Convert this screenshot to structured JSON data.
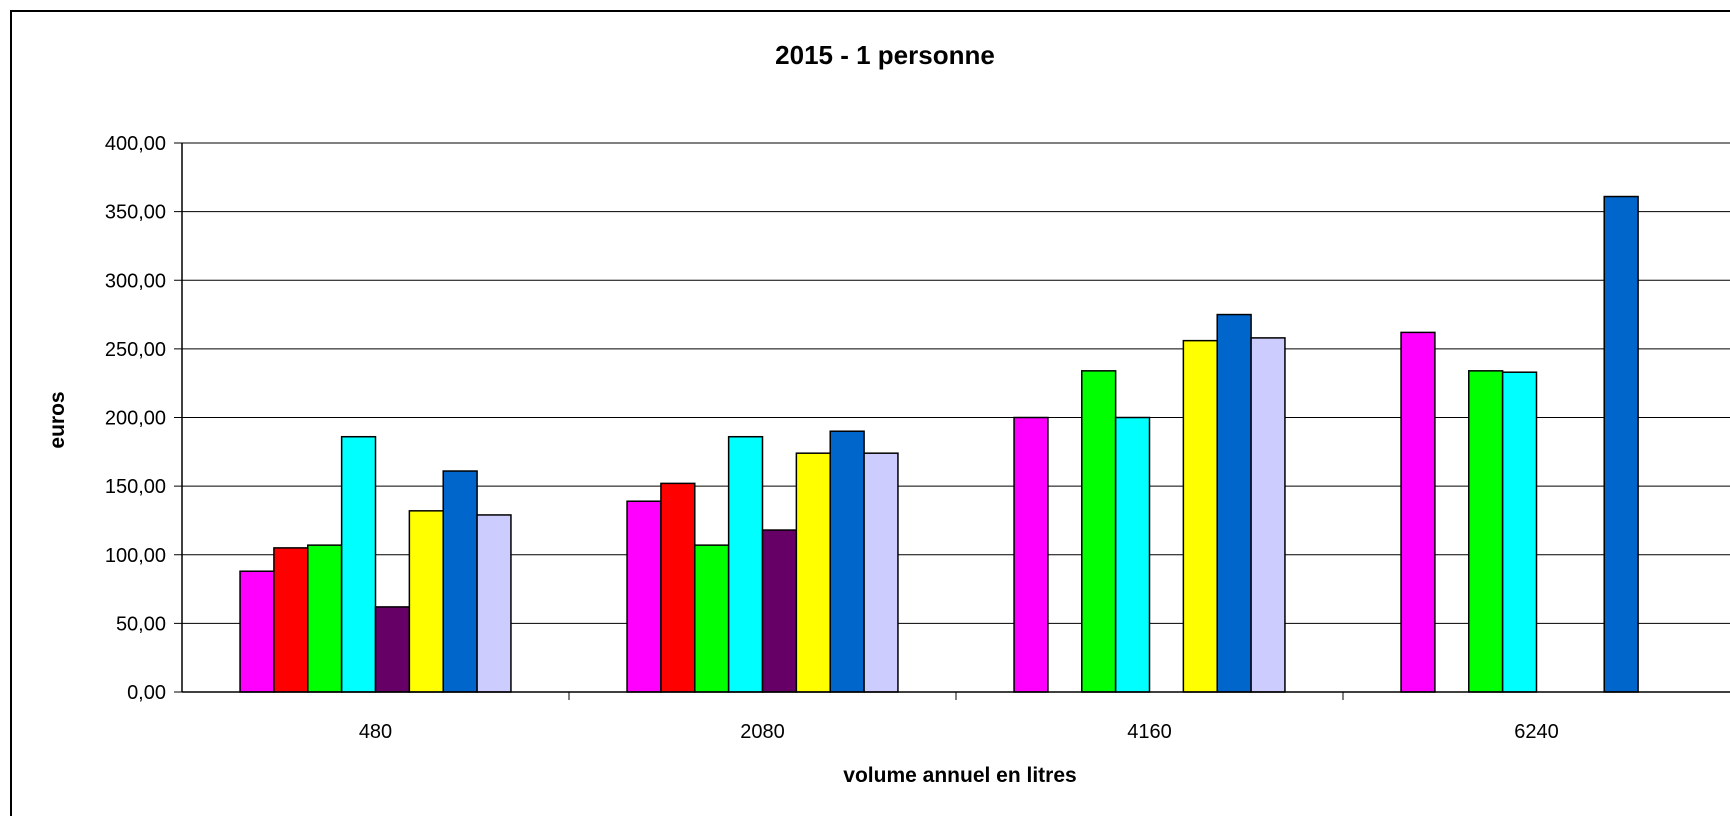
{
  "chart_data": {
    "type": "bar",
    "title": "2015 - 1 personne",
    "xlabel": "volume annuel en litres",
    "ylabel": "euros",
    "ylim": [
      0,
      400
    ],
    "yticks": [
      "0,00",
      "50,00",
      "100,00",
      "150,00",
      "200,00",
      "250,00",
      "300,00",
      "350,00",
      "400,00"
    ],
    "categories": [
      "480",
      "2080",
      "4160",
      "6240"
    ],
    "grid": true,
    "series": [
      {
        "color": "#FF00FF",
        "values": [
          88,
          139,
          200,
          262
        ]
      },
      {
        "color": "#FF0000",
        "values": [
          105,
          152,
          null,
          null
        ]
      },
      {
        "color": "#00FF00",
        "values": [
          107,
          107,
          234,
          234
        ]
      },
      {
        "color": "#00FFFF",
        "values": [
          186,
          186,
          200,
          233
        ]
      },
      {
        "color": "#660066",
        "values": [
          62,
          118,
          null,
          null
        ]
      },
      {
        "color": "#FFFF00",
        "values": [
          132,
          174,
          256,
          null
        ]
      },
      {
        "color": "#0066CC",
        "values": [
          161,
          190,
          275,
          361
        ]
      },
      {
        "color": "#CCCCFF",
        "values": [
          129,
          174,
          258,
          null
        ]
      }
    ]
  }
}
